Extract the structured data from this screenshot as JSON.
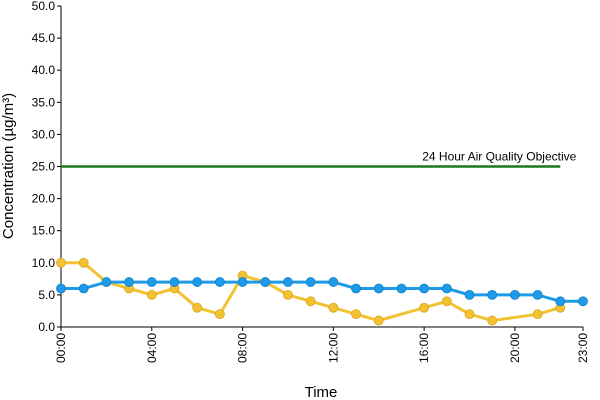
{
  "chart_data": {
    "type": "line",
    "xlabel": "Time",
    "ylabel": "Concentration (µg/m³)",
    "ylim": [
      0,
      50
    ],
    "yticks": [
      "0.0",
      "5.0",
      "10.0",
      "15.0",
      "20.0",
      "25.0",
      "30.0",
      "35.0",
      "40.0",
      "45.0",
      "50.0"
    ],
    "xlim": [
      0,
      23
    ],
    "xticks": [
      {
        "hour": 0,
        "label": "00:00"
      },
      {
        "hour": 4,
        "label": "04:00"
      },
      {
        "hour": 8,
        "label": "08:00"
      },
      {
        "hour": 12,
        "label": "12:00"
      },
      {
        "hour": 16,
        "label": "16:00"
      },
      {
        "hour": 20,
        "label": "20:00"
      },
      {
        "hour": 23,
        "label": "23:00"
      }
    ],
    "grid": false,
    "objective": {
      "label": "24 Hour Air Quality Objective",
      "value": 25,
      "x_start": 0,
      "x_end": 22,
      "color": "#1a7a1a"
    },
    "series": [
      {
        "color": "#f2c232",
        "x": [
          0,
          1,
          2,
          3,
          4,
          5,
          6,
          7,
          8,
          9,
          10,
          11,
          12,
          13,
          14,
          16,
          17,
          18,
          19,
          21,
          22
        ],
        "values": [
          10,
          10,
          7,
          6,
          5,
          6,
          3,
          2,
          8,
          7,
          5,
          4,
          3,
          2,
          1,
          3,
          4,
          2,
          1,
          2,
          3
        ]
      },
      {
        "color": "#1e9be8",
        "x": [
          0,
          1,
          2,
          3,
          4,
          5,
          6,
          7,
          8,
          9,
          10,
          11,
          12,
          13,
          14,
          15,
          16,
          17,
          18,
          19,
          20,
          21,
          22,
          23
        ],
        "values": [
          6,
          6,
          7,
          7,
          7,
          7,
          7,
          7,
          7,
          7,
          7,
          7,
          7,
          6,
          6,
          6,
          6,
          6,
          5,
          5,
          5,
          5,
          4,
          4
        ]
      }
    ]
  }
}
